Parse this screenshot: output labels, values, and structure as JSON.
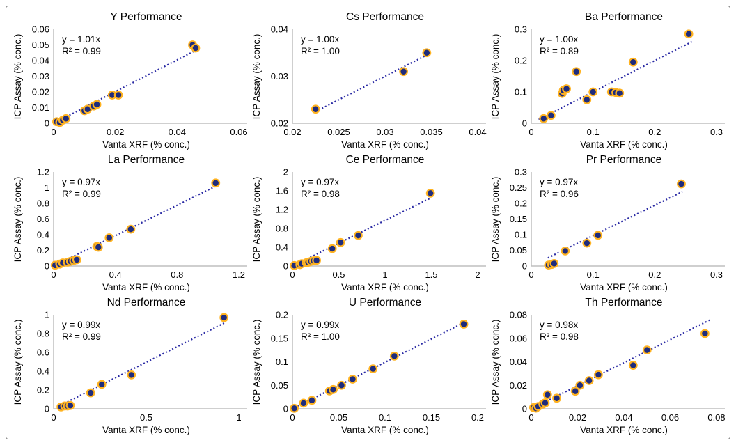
{
  "colors": {
    "marker_fill": "#1f2c7c",
    "marker_ring": "#ffb321",
    "trendline": "#2a2aa4",
    "axis_line": "#bfbfbf",
    "text": "#000000",
    "background": "#ffffff",
    "frame_border": "#8a8a8a"
  },
  "chart_data": [
    {
      "type": "scatter",
      "element": "Y",
      "title": "Y Performance",
      "equation": "y = 1.01x",
      "r2": "R² = 0.99",
      "xlabel": "Vanta XRF (% conc.)",
      "ylabel": "ICP Assay (% conc.)",
      "xlim": [
        0,
        0.06
      ],
      "ylim": [
        0,
        0.06
      ],
      "xticks": [
        "0",
        "0.02",
        "0.04",
        "0.06"
      ],
      "yticks": [
        "0",
        "0.01",
        "0.02",
        "0.03",
        "0.04",
        "0.05",
        "0.06"
      ],
      "grid": false,
      "legend": false,
      "trend": {
        "slope": 1.01,
        "x_start": 0.001,
        "x_end": 0.0465,
        "style": "dotted"
      },
      "points": [
        [
          0.001,
          0.001
        ],
        [
          0.002,
          0.0005
        ],
        [
          0.003,
          0.002
        ],
        [
          0.004,
          0.003
        ],
        [
          0.01,
          0.008
        ],
        [
          0.011,
          0.009
        ],
        [
          0.013,
          0.011
        ],
        [
          0.014,
          0.012
        ],
        [
          0.019,
          0.018
        ],
        [
          0.021,
          0.018
        ],
        [
          0.045,
          0.05
        ],
        [
          0.046,
          0.048
        ]
      ]
    },
    {
      "type": "scatter",
      "element": "Cs",
      "title": "Cs Performance",
      "equation": "y = 1.00x",
      "r2": "R² = 1.00",
      "xlabel": "Vanta XRF (% conc.)",
      "ylabel": "ICP Assay (% conc.)",
      "xlim": [
        0.02,
        0.04
      ],
      "ylim": [
        0.02,
        0.04
      ],
      "xticks": [
        "0.02",
        "0.025",
        "0.03",
        "0.035",
        "0.04"
      ],
      "yticks": [
        "0.02",
        "0.03",
        "0.04"
      ],
      "grid": false,
      "legend": false,
      "trend": {
        "slope": 1.0,
        "x_start": 0.0225,
        "x_end": 0.0345,
        "style": "dotted"
      },
      "points": [
        [
          0.0225,
          0.023
        ],
        [
          0.032,
          0.031
        ],
        [
          0.0345,
          0.035
        ]
      ]
    },
    {
      "type": "scatter",
      "element": "Ba",
      "title": "Ba Performance",
      "equation": "y = 1.00x",
      "r2": "R² = 0.89",
      "xlabel": "Vanta XRF (% conc.)",
      "ylabel": "ICP Assay (% conc.)",
      "xlim": [
        0,
        0.3
      ],
      "ylim": [
        0,
        0.3
      ],
      "xticks": [
        "0",
        "0.1",
        "0.2",
        "0.3"
      ],
      "yticks": [
        "0",
        "0.1",
        "0.2",
        "0.3"
      ],
      "grid": false,
      "legend": false,
      "trend": {
        "slope": 1.0,
        "x_start": 0.012,
        "x_end": 0.26,
        "style": "dotted"
      },
      "points": [
        [
          0.02,
          0.015
        ],
        [
          0.032,
          0.025
        ],
        [
          0.05,
          0.095
        ],
        [
          0.052,
          0.105
        ],
        [
          0.057,
          0.11
        ],
        [
          0.073,
          0.165
        ],
        [
          0.09,
          0.075
        ],
        [
          0.1,
          0.1
        ],
        [
          0.13,
          0.1
        ],
        [
          0.137,
          0.098
        ],
        [
          0.143,
          0.096
        ],
        [
          0.165,
          0.195
        ],
        [
          0.255,
          0.285
        ]
      ]
    },
    {
      "type": "scatter",
      "element": "La",
      "title": "La Performance",
      "equation": "y = 0.97x",
      "r2": "R² = 0.99",
      "xlabel": "Vanta XRF (% conc.)",
      "ylabel": "ICP Assay (% conc.)",
      "xlim": [
        0,
        1.2
      ],
      "ylim": [
        0,
        1.2
      ],
      "xticks": [
        "0",
        "0.4",
        "0.8",
        "1.2"
      ],
      "yticks": [
        "0",
        "0.2",
        "0.4",
        "0.6",
        "0.8",
        "1",
        "1.2"
      ],
      "grid": false,
      "legend": false,
      "trend": {
        "slope": 0.97,
        "x_start": 0.01,
        "x_end": 1.05,
        "style": "dotted"
      },
      "points": [
        [
          0.01,
          0.01
        ],
        [
          0.04,
          0.025
        ],
        [
          0.06,
          0.04
        ],
        [
          0.09,
          0.05
        ],
        [
          0.11,
          0.06
        ],
        [
          0.13,
          0.07
        ],
        [
          0.15,
          0.08
        ],
        [
          0.28,
          0.25
        ],
        [
          0.29,
          0.24
        ],
        [
          0.36,
          0.36
        ],
        [
          0.5,
          0.47
        ],
        [
          1.05,
          1.06
        ]
      ]
    },
    {
      "type": "scatter",
      "element": "Ce",
      "title": "Ce Performance",
      "equation": "y = 0.97x",
      "r2": "R² = 0.98",
      "xlabel": "Vanta XRF (% conc.)",
      "ylabel": "ICP Assay (% conc.)",
      "xlim": [
        0,
        2
      ],
      "ylim": [
        0,
        2
      ],
      "xticks": [
        "0",
        "0.5",
        "1",
        "1.5",
        "2"
      ],
      "yticks": [
        "0",
        "0.4",
        "0.8",
        "1.2",
        "1.6",
        "2"
      ],
      "grid": false,
      "legend": false,
      "trend": {
        "slope": 0.97,
        "x_start": 0.02,
        "x_end": 1.49,
        "style": "dotted"
      },
      "points": [
        [
          0.02,
          0.01
        ],
        [
          0.08,
          0.03
        ],
        [
          0.1,
          0.05
        ],
        [
          0.15,
          0.07
        ],
        [
          0.17,
          0.08
        ],
        [
          0.2,
          0.1
        ],
        [
          0.23,
          0.11
        ],
        [
          0.26,
          0.12
        ],
        [
          0.43,
          0.37
        ],
        [
          0.52,
          0.5
        ],
        [
          0.71,
          0.65
        ],
        [
          1.49,
          1.55
        ]
      ]
    },
    {
      "type": "scatter",
      "element": "Pr",
      "title": "Pr Performance",
      "equation": "y = 0.97x",
      "r2": "R² = 0.96",
      "xlabel": "Vanta XRF (% conc.)",
      "ylabel": "ICP Assay (% conc.)",
      "xlim": [
        0,
        0.3
      ],
      "ylim": [
        0,
        0.3
      ],
      "xticks": [
        "0",
        "0.1",
        "0.2",
        "0.3"
      ],
      "yticks": [
        "0",
        "0.05",
        "0.1",
        "0.15",
        "0.2",
        "0.25",
        "0.3"
      ],
      "grid": false,
      "legend": false,
      "trend": {
        "slope": 0.97,
        "x_start": 0.027,
        "x_end": 0.245,
        "style": "dotted"
      },
      "points": [
        [
          0.028,
          0.003
        ],
        [
          0.033,
          0.005
        ],
        [
          0.037,
          0.008
        ],
        [
          0.055,
          0.048
        ],
        [
          0.09,
          0.073
        ],
        [
          0.108,
          0.098
        ],
        [
          0.243,
          0.262
        ]
      ]
    },
    {
      "type": "scatter",
      "element": "Nd",
      "title": "Nd Performance",
      "equation": "y = 0.99x",
      "r2": "R² = 0.99",
      "xlabel": "Vanta XRF (% conc.)",
      "ylabel": "ICP Assay (% conc.)",
      "xlim": [
        0,
        1
      ],
      "ylim": [
        0,
        1
      ],
      "xticks": [
        "0",
        "0.5",
        "1"
      ],
      "yticks": [
        "0",
        "0.2",
        "0.4",
        "0.6",
        "0.8",
        "1"
      ],
      "grid": false,
      "legend": false,
      "trend": {
        "slope": 0.99,
        "x_start": 0.04,
        "x_end": 0.93,
        "style": "dotted"
      },
      "points": [
        [
          0.04,
          0.02
        ],
        [
          0.06,
          0.03
        ],
        [
          0.075,
          0.03
        ],
        [
          0.09,
          0.035
        ],
        [
          0.2,
          0.17
        ],
        [
          0.26,
          0.26
        ],
        [
          0.42,
          0.36
        ],
        [
          0.92,
          0.97
        ]
      ]
    },
    {
      "type": "scatter",
      "element": "U",
      "title": "U Performance",
      "equation": "y = 0.99x",
      "r2": "R² = 1.00",
      "xlabel": "Vanta XRF (% conc.)",
      "ylabel": "ICP Assay (% conc.)",
      "xlim": [
        0,
        0.2
      ],
      "ylim": [
        0,
        0.2
      ],
      "xticks": [
        "0",
        "0.05",
        "0.1",
        "0.15",
        "0.2"
      ],
      "yticks": [
        "0",
        "0.05",
        "0.1",
        "0.15",
        "0.2"
      ],
      "grid": false,
      "legend": false,
      "trend": {
        "slope": 0.99,
        "x_start": 0.002,
        "x_end": 0.19,
        "style": "dotted"
      },
      "points": [
        [
          0.002,
          0.001
        ],
        [
          0.012,
          0.012
        ],
        [
          0.021,
          0.018
        ],
        [
          0.04,
          0.038
        ],
        [
          0.044,
          0.041
        ],
        [
          0.053,
          0.05
        ],
        [
          0.065,
          0.063
        ],
        [
          0.087,
          0.085
        ],
        [
          0.11,
          0.112
        ],
        [
          0.185,
          0.18
        ]
      ]
    },
    {
      "type": "scatter",
      "element": "Th",
      "title": "Th Performance",
      "equation": "y = 0.98x",
      "r2": "R² = 0.98",
      "xlabel": "Vanta XRF (% conc.)",
      "ylabel": "ICP Assay (% conc.)",
      "xlim": [
        0,
        0.08
      ],
      "ylim": [
        0,
        0.08
      ],
      "xticks": [
        "0",
        "0.02",
        "0.04",
        "0.06",
        "0.08"
      ],
      "yticks": [
        "0",
        "0.02",
        "0.04",
        "0.06",
        "0.08"
      ],
      "grid": false,
      "legend": false,
      "trend": {
        "slope": 0.98,
        "x_start": 0.001,
        "x_end": 0.077,
        "style": "dotted"
      },
      "points": [
        [
          0.001,
          0.001
        ],
        [
          0.002,
          0.0005
        ],
        [
          0.003,
          0.002
        ],
        [
          0.005,
          0.004
        ],
        [
          0.006,
          0.005
        ],
        [
          0.007,
          0.012
        ],
        [
          0.011,
          0.009
        ],
        [
          0.019,
          0.015
        ],
        [
          0.021,
          0.02
        ],
        [
          0.025,
          0.024
        ],
        [
          0.029,
          0.029
        ],
        [
          0.044,
          0.037
        ],
        [
          0.05,
          0.05
        ],
        [
          0.075,
          0.064
        ]
      ]
    }
  ]
}
